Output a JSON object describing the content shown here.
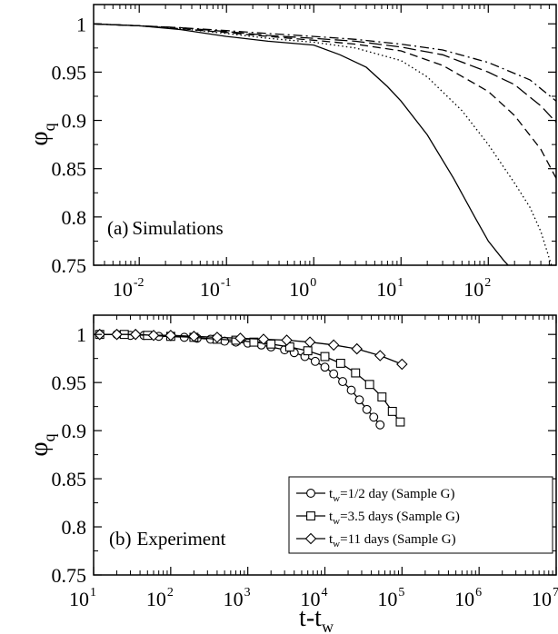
{
  "chart_data": [
    {
      "type": "line",
      "panel_label": "(a)",
      "title": "Simulations",
      "xlabel": "",
      "ylabel": "φ",
      "ylabel_sub": "q",
      "xscale": "log",
      "xlim": [
        0.003,
        600
      ],
      "ylim": [
        0.75,
        1.02
      ],
      "x_tick_bases": [
        "10",
        "10",
        "10",
        "10",
        "10"
      ],
      "x_tick_exps": [
        "-2",
        "-1",
        "0",
        "1",
        "2"
      ],
      "x_tick_values": [
        0.01,
        0.1,
        1,
        10,
        100
      ],
      "y_ticks": [
        "0.75",
        "0.8",
        "0.85",
        "0.9",
        "0.95",
        "1"
      ],
      "y_tick_values": [
        0.75,
        0.8,
        0.85,
        0.9,
        0.95,
        1.0
      ],
      "grid": false,
      "series": [
        {
          "style": "solid",
          "x": [
            0.003,
            0.01,
            0.03,
            0.1,
            0.3,
            1,
            2,
            4,
            7,
            10,
            20,
            40,
            70,
            100,
            150,
            190
          ],
          "y": [
            1.0,
            0.998,
            0.994,
            0.987,
            0.982,
            0.978,
            0.968,
            0.955,
            0.935,
            0.92,
            0.885,
            0.84,
            0.8,
            0.775,
            0.755,
            0.745
          ]
        },
        {
          "style": "dotted",
          "x": [
            0.003,
            0.01,
            0.03,
            0.1,
            0.3,
            1,
            3,
            10,
            20,
            50,
            100,
            200,
            300,
            400,
            550
          ],
          "y": [
            1.0,
            0.998,
            0.995,
            0.99,
            0.985,
            0.981,
            0.975,
            0.962,
            0.945,
            0.91,
            0.875,
            0.835,
            0.81,
            0.785,
            0.745
          ]
        },
        {
          "style": "dashed",
          "x": [
            0.003,
            0.01,
            0.03,
            0.1,
            0.3,
            1,
            3,
            10,
            30,
            100,
            200,
            400,
            600
          ],
          "y": [
            1.0,
            0.998,
            0.995,
            0.991,
            0.987,
            0.983,
            0.979,
            0.972,
            0.957,
            0.93,
            0.905,
            0.87,
            0.84
          ]
        },
        {
          "style": "longdash",
          "x": [
            0.003,
            0.01,
            0.03,
            0.1,
            0.3,
            1,
            3,
            10,
            30,
            100,
            200,
            400,
            600
          ],
          "y": [
            1.0,
            0.998,
            0.996,
            0.992,
            0.988,
            0.985,
            0.982,
            0.976,
            0.968,
            0.95,
            0.937,
            0.915,
            0.898
          ]
        },
        {
          "style": "dashdot",
          "x": [
            0.003,
            0.01,
            0.03,
            0.1,
            0.3,
            1,
            3,
            10,
            30,
            100,
            300,
            600
          ],
          "y": [
            1.0,
            0.998,
            0.996,
            0.993,
            0.99,
            0.987,
            0.984,
            0.979,
            0.973,
            0.96,
            0.942,
            0.92
          ]
        }
      ]
    },
    {
      "type": "line",
      "panel_label": "(b)",
      "title": "Experiment",
      "xlabel": "t-t",
      "xlabel_sub": "w",
      "ylabel": "φ",
      "ylabel_sub": "q",
      "xscale": "log",
      "xlim": [
        10,
        10000000
      ],
      "ylim": [
        0.75,
        1.02
      ],
      "x_tick_bases": [
        "10",
        "10",
        "10",
        "10",
        "10",
        "10",
        "10"
      ],
      "x_tick_exps": [
        "1",
        "2",
        "3",
        "4",
        "5",
        "6",
        "7"
      ],
      "x_tick_values": [
        10,
        100,
        1000,
        10000,
        100000,
        1000000,
        10000000
      ],
      "y_ticks": [
        "0.75",
        "0.8",
        "0.85",
        "0.9",
        "0.95",
        "1"
      ],
      "y_tick_values": [
        0.75,
        0.8,
        0.85,
        0.9,
        0.95,
        1.0
      ],
      "grid": false,
      "legend_position": "bottom-right",
      "series": [
        {
          "name_prefix": "t",
          "name_sub": "w",
          "name_rest": "=1/2 day  (Sample G)",
          "marker": "circle",
          "x": [
            12,
            20,
            30,
            45,
            70,
            100,
            150,
            220,
            330,
            500,
            700,
            1000,
            1500,
            2000,
            3000,
            4000,
            5500,
            7500,
            10000,
            13000,
            17000,
            22000,
            28000,
            35000,
            43000,
            52000
          ],
          "y": [
            1.0,
            1.0,
            0.999,
            0.999,
            0.998,
            0.998,
            0.997,
            0.996,
            0.995,
            0.993,
            0.992,
            0.991,
            0.989,
            0.987,
            0.984,
            0.981,
            0.977,
            0.972,
            0.966,
            0.959,
            0.951,
            0.942,
            0.932,
            0.922,
            0.914,
            0.906
          ]
        },
        {
          "name_prefix": "t",
          "name_sub": "w",
          "name_rest": "=3.5 days (Sample G)",
          "marker": "square",
          "x": [
            12,
            25,
            50,
            100,
            200,
            400,
            700,
            1200,
            2000,
            3500,
            6000,
            10000,
            16000,
            25000,
            38000,
            55000,
            75000,
            95000
          ],
          "y": [
            1.0,
            1.0,
            0.999,
            0.998,
            0.997,
            0.995,
            0.994,
            0.992,
            0.99,
            0.987,
            0.983,
            0.977,
            0.97,
            0.96,
            0.948,
            0.935,
            0.92,
            0.909
          ]
        },
        {
          "name_prefix": "t",
          "name_sub": "w",
          "name_rest": "=11 days  (Sample G)",
          "marker": "diamond",
          "x": [
            12,
            20,
            35,
            60,
            100,
            200,
            400,
            800,
            1600,
            3200,
            6400,
            13000,
            26000,
            52000,
            100000
          ],
          "y": [
            1.0,
            1.0,
            1.0,
            0.999,
            0.999,
            0.998,
            0.997,
            0.996,
            0.995,
            0.994,
            0.992,
            0.989,
            0.985,
            0.978,
            0.969
          ]
        }
      ]
    }
  ]
}
